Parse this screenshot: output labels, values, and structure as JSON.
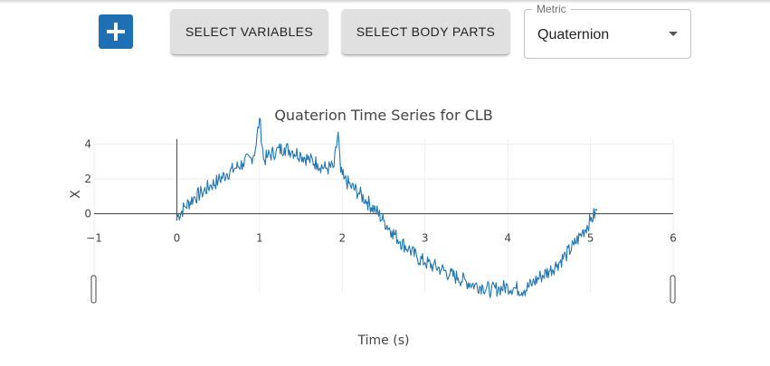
{
  "toolbar": {
    "add_button_icon": "plus-icon",
    "select_variables_label": "SELECT VARIABLES",
    "select_body_parts_label": "SELECT BODY PARTS",
    "metric": {
      "legend": "Metric",
      "value": "Quaternion",
      "icon": "chevron-down-icon"
    }
  },
  "colors": {
    "accent": "#1f6fb4",
    "line": "#1f77b4",
    "button_bg": "#e0e0e0"
  },
  "chart_data": {
    "type": "line",
    "title": "Quaterion Time Series for CLB",
    "xlabel": "Time (s)",
    "ylabel": "X",
    "xlim": [
      -1,
      6
    ],
    "ylim": [
      -4.5,
      4.5
    ],
    "x_ticks": [
      "−1",
      "0",
      "1",
      "2",
      "3",
      "4",
      "5",
      "6"
    ],
    "x_tick_values": [
      -1,
      0,
      1,
      2,
      3,
      4,
      5,
      6
    ],
    "y_ticks": [
      "0",
      "2",
      "4"
    ],
    "y_tick_values": [
      0,
      2,
      4
    ],
    "grid": true,
    "range_slider": true,
    "series": [
      {
        "x": [
          0,
          0.1,
          0.2,
          0.3,
          0.4,
          0.5,
          0.6,
          0.7,
          0.8,
          0.9,
          0.95,
          1.0,
          1.05,
          1.1,
          1.2,
          1.3,
          1.4,
          1.5,
          1.6,
          1.7,
          1.8,
          1.9,
          1.95,
          1.98,
          2.02,
          2.1,
          2.2,
          2.3,
          2.4,
          2.5,
          2.6,
          2.7,
          2.8,
          2.9,
          3.0,
          3.1,
          3.2,
          3.3,
          3.4,
          3.5,
          3.6,
          3.7,
          3.8,
          3.9,
          4.0,
          4.1,
          4.2,
          4.3,
          4.4,
          4.5,
          4.6,
          4.7,
          4.8,
          4.9,
          5.0,
          5.08
        ],
        "y": [
          -0.2,
          0.4,
          0.9,
          1.2,
          1.6,
          1.9,
          2.3,
          2.6,
          2.9,
          3.2,
          3.7,
          5.5,
          3.1,
          3.3,
          3.6,
          3.8,
          3.6,
          3.4,
          3.1,
          2.9,
          2.6,
          2.7,
          4.7,
          2.4,
          2.0,
          1.6,
          1.2,
          0.7,
          0.2,
          -0.4,
          -1.0,
          -1.6,
          -2.0,
          -2.5,
          -2.8,
          -3.0,
          -3.2,
          -3.5,
          -3.7,
          -3.9,
          -4.1,
          -4.2,
          -4.4,
          -4.3,
          -4.2,
          -4.3,
          -4.4,
          -4.0,
          -3.6,
          -3.3,
          -2.9,
          -2.4,
          -1.8,
          -1.1,
          -0.4,
          0.2
        ]
      }
    ]
  }
}
